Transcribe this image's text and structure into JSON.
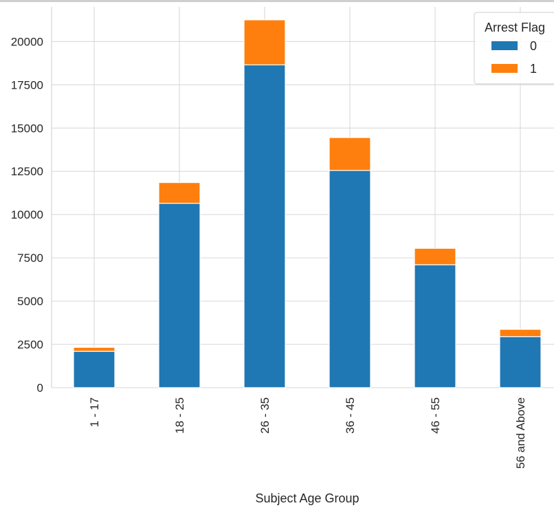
{
  "chart_data": {
    "type": "bar",
    "stacked": true,
    "categories": [
      "1 - 17",
      "18 - 25",
      "26 - 35",
      "36 - 45",
      "46 - 55",
      "56 and Above"
    ],
    "series": [
      {
        "name": "0",
        "color": "#1f77b4",
        "values": [
          2100,
          10650,
          18650,
          12550,
          7100,
          2950
        ]
      },
      {
        "name": "1",
        "color": "#ff7f0e",
        "values": [
          230,
          1200,
          2600,
          1900,
          950,
          420
        ]
      }
    ],
    "title": "",
    "xlabel": "Subject Age Group",
    "ylabel": "",
    "ylim": [
      0,
      22000
    ],
    "yticks": [
      0,
      2500,
      5000,
      7500,
      10000,
      12500,
      15000,
      17500,
      20000
    ],
    "grid": true,
    "legend": {
      "title": "Arrest Flag",
      "position": "top-right"
    }
  }
}
